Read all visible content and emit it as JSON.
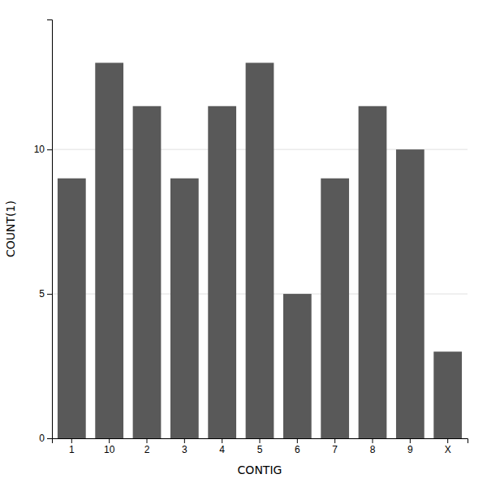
{
  "chart_data": {
    "type": "bar",
    "categories": [
      "1",
      "10",
      "2",
      "3",
      "4",
      "5",
      "6",
      "7",
      "8",
      "9",
      "X"
    ],
    "values": [
      9,
      13,
      11.5,
      9,
      11.5,
      13,
      5,
      9,
      11.5,
      10,
      3
    ],
    "color": "#595959",
    "xlabel": "CONTIG",
    "ylabel": "COUNT(1)",
    "ylim": [
      0,
      14.5
    ],
    "yticks": [
      0,
      5,
      10
    ],
    "grid": true
  }
}
